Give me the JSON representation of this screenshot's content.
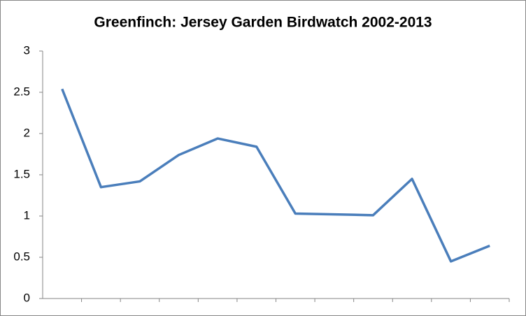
{
  "chart_data": {
    "type": "line",
    "title": "Greenfinch: Jersey Garden Birdwatch 2002-2013",
    "categories": [
      null,
      null,
      null,
      null,
      null,
      null,
      null,
      null,
      null,
      null,
      null,
      null
    ],
    "series": [
      {
        "color": "#4a7ebb",
        "values": [
          2.54,
          1.35,
          1.42,
          1.74,
          1.94,
          1.84,
          1.03,
          1.02,
          1.01,
          1.45,
          0.45,
          0.64
        ]
      }
    ],
    "ylim": [
      0,
      3
    ],
    "yticks": [
      0,
      0.5,
      1,
      1.5,
      2,
      2.5,
      3
    ],
    "grid": false
  }
}
